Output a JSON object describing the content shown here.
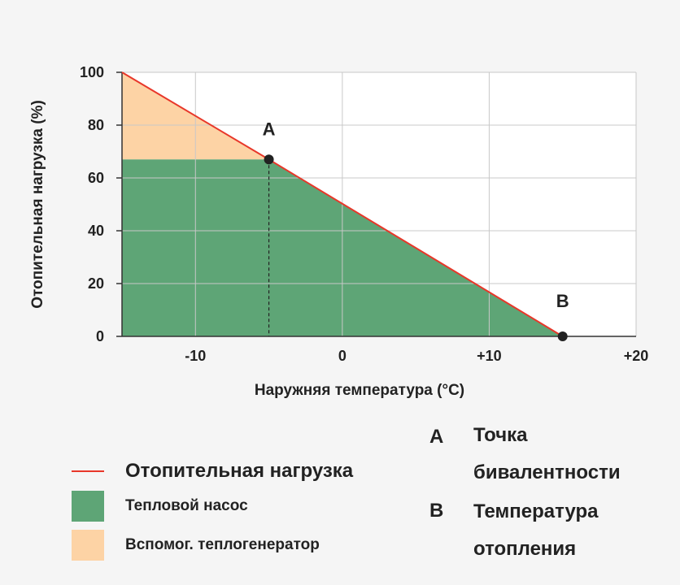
{
  "chart_data": {
    "type": "area",
    "x": [
      -15,
      -5,
      15
    ],
    "series": [
      {
        "name": "Отопительная нагрузка",
        "kind": "line",
        "color": "#e8372a",
        "points": [
          [
            -15,
            100
          ],
          [
            -5,
            67
          ],
          [
            15,
            0
          ]
        ]
      },
      {
        "name": "Тепловой насос",
        "kind": "area",
        "color": "#5ea576"
      },
      {
        "name": "Вспомог. теплогенератор",
        "kind": "area",
        "color": "#fdd3a5"
      }
    ],
    "bivalent_point": {
      "label": "A",
      "x": -5,
      "y": 67
    },
    "heating_point": {
      "label": "B",
      "x": 15,
      "y": 0
    },
    "xlabel": "Наружняя температура (°C)",
    "ylabel": "Отопительная нагрузка (%)",
    "xlim": [
      -15,
      20
    ],
    "ylim": [
      0,
      100
    ],
    "xticks": [
      -10,
      0,
      10,
      20
    ],
    "xtick_labels": [
      "-10",
      "0",
      "+10",
      "+20"
    ],
    "yticks": [
      0,
      20,
      40,
      60,
      80,
      100
    ],
    "ytick_labels": [
      "0",
      "20",
      "40",
      "60",
      "80",
      "100"
    ],
    "grid": true
  },
  "legend": {
    "items": [
      {
        "label": "Отопительная нагрузка",
        "color": "#e8372a",
        "kind": "line"
      },
      {
        "label": "Тепловой насос",
        "color": "#5ea576",
        "kind": "swatch"
      },
      {
        "label": "Вспомог. теплогенератор",
        "color": "#fdd3a5",
        "kind": "swatch"
      }
    ]
  },
  "notes": {
    "a_key": "A",
    "a_line1": "Точка",
    "a_line2": "бивалентности",
    "b_key": "B",
    "b_line1": "Температура",
    "b_line2": "отопления"
  }
}
